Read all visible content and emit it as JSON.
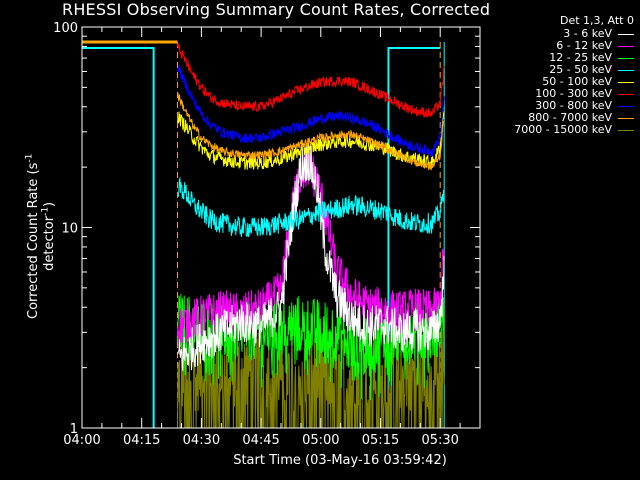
{
  "chart_data": {
    "type": "line",
    "title": "RHESSI Observing Summary Count Rates, Corrected",
    "xlabel": "Start Time (03-May-16 03:59:42)",
    "ylabel_main": "Corrected Count Rate (s",
    "ylabel_sup1": "-1",
    "ylabel_mid": " detector",
    "ylabel_sup2": "-1",
    "ylabel_end": ")",
    "y_scale": "log",
    "ylim": [
      1,
      100
    ],
    "y_ticks": [
      1,
      10,
      100
    ],
    "y_tick_labels": [
      "1",
      "10",
      "100"
    ],
    "xlim": [
      0,
      100
    ],
    "x_tick_minutes": [
      0,
      15,
      30,
      45,
      60,
      75,
      90
    ],
    "x_tick_labels": [
      "04:00",
      "04:15",
      "04:30",
      "04:45",
      "05:00",
      "05:15",
      "05:30"
    ],
    "legend_header": "Det 1,3, Att 0",
    "legend_placement": "right",
    "series": [
      {
        "name": "3 - 6 keV",
        "color": "#ffffff",
        "points": [
          [
            24,
            2.2
          ],
          [
            30,
            2.7
          ],
          [
            35,
            3.0
          ],
          [
            40,
            3.4
          ],
          [
            45,
            3.2
          ],
          [
            50,
            4.0
          ],
          [
            53,
            12
          ],
          [
            55,
            20
          ],
          [
            57,
            22
          ],
          [
            59,
            16
          ],
          [
            61,
            8
          ],
          [
            64,
            4.5
          ],
          [
            68,
            3.5
          ],
          [
            72,
            3.2
          ],
          [
            76,
            3.3
          ],
          [
            80,
            3.0
          ],
          [
            84,
            3.1
          ],
          [
            88,
            3.0
          ],
          [
            90,
            3.5
          ],
          [
            91,
            6
          ]
        ]
      },
      {
        "name": "6 - 12 keV",
        "color": "#ff00ff",
        "points": [
          [
            24,
            3.2
          ],
          [
            30,
            3.6
          ],
          [
            35,
            3.8
          ],
          [
            40,
            3.7
          ],
          [
            45,
            3.9
          ],
          [
            50,
            4.8
          ],
          [
            53,
            13
          ],
          [
            55,
            19
          ],
          [
            57,
            20
          ],
          [
            59,
            17
          ],
          [
            61,
            12
          ],
          [
            64,
            6
          ],
          [
            68,
            4.5
          ],
          [
            72,
            4.0
          ],
          [
            76,
            3.9
          ],
          [
            80,
            3.8
          ],
          [
            84,
            3.9
          ],
          [
            88,
            3.8
          ],
          [
            90,
            4.2
          ],
          [
            91,
            8
          ]
        ]
      },
      {
        "name": "12 - 25 keV",
        "color": "#00ff00",
        "points": [
          [
            24,
            3.4
          ],
          [
            30,
            3.2
          ],
          [
            35,
            3.0
          ],
          [
            40,
            3.1
          ],
          [
            45,
            3.0
          ],
          [
            50,
            3.2
          ],
          [
            55,
            3.3
          ],
          [
            60,
            3.1
          ],
          [
            65,
            3.0
          ],
          [
            68,
            2.4
          ],
          [
            72,
            2.5
          ],
          [
            76,
            2.8
          ],
          [
            80,
            2.9
          ],
          [
            84,
            3.0
          ],
          [
            88,
            3.0
          ],
          [
            91,
            3.4
          ]
        ]
      },
      {
        "name": "25 - 50 keV",
        "color": "#00ffff",
        "points": [
          [
            24,
            16
          ],
          [
            26,
            15
          ],
          [
            28,
            13
          ],
          [
            30,
            12
          ],
          [
            32,
            11
          ],
          [
            35,
            10.5
          ],
          [
            40,
            10
          ],
          [
            45,
            10
          ],
          [
            50,
            10.5
          ],
          [
            55,
            11
          ],
          [
            60,
            12
          ],
          [
            65,
            12.5
          ],
          [
            68,
            13
          ],
          [
            72,
            12.5
          ],
          [
            76,
            12
          ],
          [
            80,
            11
          ],
          [
            84,
            10.5
          ],
          [
            88,
            10.5
          ],
          [
            90,
            12
          ],
          [
            91,
            15
          ]
        ]
      },
      {
        "name": "50 - 100 keV",
        "color": "#ffff00",
        "points": [
          [
            24,
            36
          ],
          [
            26,
            32
          ],
          [
            28,
            28
          ],
          [
            30,
            25
          ],
          [
            32,
            23
          ],
          [
            35,
            22
          ],
          [
            40,
            21
          ],
          [
            45,
            21
          ],
          [
            50,
            22
          ],
          [
            55,
            24
          ],
          [
            60,
            26
          ],
          [
            65,
            27
          ],
          [
            68,
            27
          ],
          [
            72,
            26
          ],
          [
            76,
            25
          ],
          [
            80,
            23
          ],
          [
            84,
            22
          ],
          [
            88,
            21
          ],
          [
            90,
            25
          ],
          [
            91,
            40
          ]
        ]
      },
      {
        "name": "100 - 300 keV",
        "color": "#ff0000",
        "points": [
          [
            24,
            80
          ],
          [
            26,
            68
          ],
          [
            28,
            57
          ],
          [
            30,
            50
          ],
          [
            32,
            45
          ],
          [
            35,
            42
          ],
          [
            40,
            40
          ],
          [
            45,
            40
          ],
          [
            50,
            44
          ],
          [
            55,
            49
          ],
          [
            60,
            53
          ],
          [
            65,
            54
          ],
          [
            68,
            53
          ],
          [
            72,
            49
          ],
          [
            76,
            45
          ],
          [
            80,
            41
          ],
          [
            84,
            38
          ],
          [
            88,
            37
          ],
          [
            90,
            42
          ],
          [
            91,
            62
          ]
        ]
      },
      {
        "name": "300 - 800 keV",
        "color": "#0000ff",
        "points": [
          [
            24,
            64
          ],
          [
            26,
            52
          ],
          [
            28,
            43
          ],
          [
            30,
            37
          ],
          [
            32,
            33
          ],
          [
            35,
            30
          ],
          [
            40,
            28
          ],
          [
            45,
            28
          ],
          [
            50,
            30
          ],
          [
            55,
            32
          ],
          [
            60,
            35
          ],
          [
            65,
            36
          ],
          [
            68,
            35
          ],
          [
            72,
            33
          ],
          [
            76,
            30
          ],
          [
            80,
            27
          ],
          [
            84,
            25
          ],
          [
            88,
            24
          ],
          [
            90,
            28
          ],
          [
            91,
            45
          ]
        ]
      },
      {
        "name": "800 - 7000 keV",
        "color": "#ffa500",
        "points": [
          [
            24,
            46
          ],
          [
            26,
            38
          ],
          [
            28,
            32
          ],
          [
            30,
            28
          ],
          [
            32,
            26
          ],
          [
            35,
            24
          ],
          [
            40,
            23
          ],
          [
            45,
            23
          ],
          [
            50,
            24
          ],
          [
            55,
            26
          ],
          [
            60,
            28
          ],
          [
            65,
            29
          ],
          [
            68,
            29
          ],
          [
            72,
            27
          ],
          [
            76,
            25
          ],
          [
            80,
            23
          ],
          [
            84,
            21
          ],
          [
            88,
            20
          ],
          [
            90,
            23
          ],
          [
            91,
            36
          ]
        ]
      },
      {
        "name": "7000 - 15000 keV",
        "color": "#808000",
        "points": [
          [
            24,
            1.8
          ],
          [
            30,
            1.9
          ],
          [
            35,
            1.9
          ],
          [
            40,
            2.0
          ],
          [
            45,
            1.9
          ],
          [
            50,
            1.9
          ],
          [
            55,
            1.9
          ],
          [
            60,
            1.9
          ],
          [
            65,
            1.9
          ],
          [
            70,
            2.0
          ],
          [
            75,
            1.9
          ],
          [
            80,
            1.9
          ],
          [
            85,
            1.9
          ],
          [
            90,
            2.0
          ],
          [
            91,
            2.2
          ]
        ]
      }
    ]
  }
}
